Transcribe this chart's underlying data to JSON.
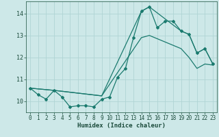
{
  "xlabel": "Humidex (Indice chaleur)",
  "bg_color": "#cde8e8",
  "line_color": "#1a7a6e",
  "grid_color": "#b0d4d4",
  "xlim": [
    -0.5,
    23.5
  ],
  "ylim": [
    9.5,
    14.55
  ],
  "yticks": [
    10,
    11,
    12,
    13,
    14
  ],
  "xticks": [
    0,
    1,
    2,
    3,
    4,
    5,
    6,
    7,
    8,
    9,
    10,
    11,
    12,
    13,
    14,
    15,
    16,
    17,
    18,
    19,
    20,
    21,
    22,
    23
  ],
  "series1_x": [
    0,
    1,
    2,
    3,
    4,
    5,
    6,
    7,
    8,
    9,
    10,
    11,
    12,
    13,
    14,
    15,
    16,
    17,
    18,
    19,
    20,
    21,
    22,
    23
  ],
  "series1_y": [
    10.6,
    10.3,
    10.1,
    10.5,
    10.2,
    9.75,
    9.8,
    9.8,
    9.75,
    10.1,
    10.2,
    11.1,
    11.5,
    12.9,
    14.1,
    14.3,
    13.35,
    13.65,
    13.65,
    13.2,
    13.05,
    12.2,
    12.4,
    11.7
  ],
  "series2_x": [
    0,
    3,
    9,
    14,
    15,
    19,
    20,
    21,
    22,
    23
  ],
  "series2_y": [
    10.6,
    10.5,
    10.25,
    14.1,
    14.3,
    13.2,
    13.05,
    12.2,
    12.4,
    11.7
  ],
  "series3_x": [
    0,
    3,
    9,
    14,
    15,
    19,
    20,
    21,
    22,
    23
  ],
  "series3_y": [
    10.6,
    10.5,
    10.25,
    12.9,
    13.0,
    12.4,
    12.0,
    11.5,
    11.7,
    11.65
  ]
}
